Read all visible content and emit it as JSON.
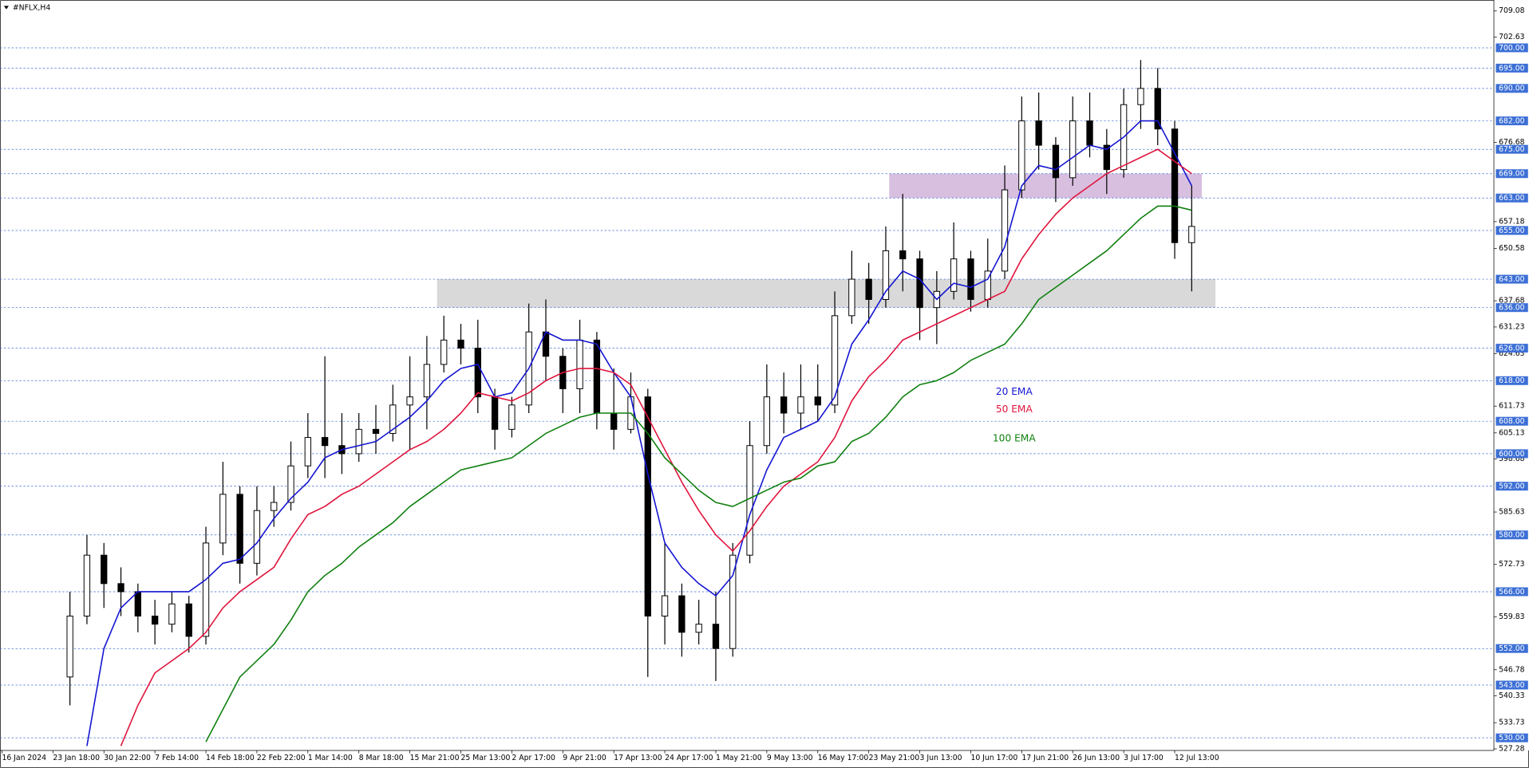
{
  "chart_data": {
    "type": "candlestick",
    "title": "#NFLX,H4",
    "categories": [
      "16 Jan 2024",
      null,
      null,
      "23 Jan 18:00",
      null,
      null,
      "30 Jan 22:00",
      null,
      null,
      "7 Feb 14:00",
      null,
      null,
      "14 Feb 18:00",
      null,
      null,
      "22 Feb 22:00",
      null,
      null,
      "1 Mar 14:00",
      null,
      null,
      "8 Mar 18:00",
      null,
      null,
      "15 Mar 21:00",
      null,
      null,
      "25 Mar 13:00",
      null,
      null,
      "2 Apr 17:00",
      null,
      null,
      "9 Apr 21:00",
      null,
      null,
      "17 Apr 13:00",
      null,
      null,
      "24 Apr 17:00",
      null,
      null,
      "1 May 21:00",
      null,
      null,
      "9 May 13:00",
      null,
      null,
      "16 May 17:00",
      null,
      null,
      "23 May 21:00",
      null,
      null,
      "3 Jun 13:00",
      null,
      null,
      "10 Jun 17:00",
      null,
      null,
      "17 Jun 21:00",
      null,
      null,
      "26 Jun 13:00",
      null,
      null,
      "3 Jul 17:00",
      null,
      null,
      "12 Jul 13:00",
      null,
      null
    ],
    "candles": [
      null,
      null,
      null,
      null,
      [
        545,
        566,
        538,
        560
      ],
      [
        560,
        580,
        558,
        575
      ],
      [
        575,
        578,
        562,
        568
      ],
      [
        568,
        572,
        560,
        566
      ],
      [
        566,
        568,
        556,
        560
      ],
      [
        560,
        564,
        553,
        558
      ],
      [
        558,
        566,
        556,
        563
      ],
      [
        563,
        565,
        551,
        555
      ],
      [
        555,
        582,
        553,
        578
      ],
      [
        578,
        598,
        575,
        590
      ],
      [
        590,
        592,
        568,
        573
      ],
      [
        573,
        592,
        570,
        586
      ],
      [
        586,
        592,
        582,
        588
      ],
      [
        588,
        603,
        586,
        597
      ],
      [
        597,
        610,
        594,
        604
      ],
      [
        604,
        624,
        594,
        602
      ],
      [
        602,
        610,
        595,
        600
      ],
      [
        600,
        610,
        598,
        606
      ],
      [
        606,
        612,
        600,
        605
      ],
      [
        605,
        617,
        603,
        612
      ],
      [
        612,
        624,
        601,
        614
      ],
      [
        614,
        629,
        606,
        622
      ],
      [
        622,
        634,
        620,
        628
      ],
      [
        628,
        632,
        622,
        626
      ],
      [
        626,
        633,
        610,
        614
      ],
      [
        614,
        616,
        601,
        606
      ],
      [
        606,
        614,
        604,
        612
      ],
      [
        612,
        637,
        610,
        630
      ],
      [
        630,
        638,
        618,
        624
      ],
      [
        624,
        626,
        610,
        616
      ],
      [
        616,
        633,
        610,
        628
      ],
      [
        628,
        630,
        606,
        610
      ],
      [
        610,
        621,
        601,
        606
      ],
      [
        606,
        620,
        605,
        614
      ],
      [
        614,
        616,
        545,
        560
      ],
      [
        560,
        578,
        553,
        565
      ],
      [
        565,
        568,
        550,
        556
      ],
      [
        556,
        564,
        553,
        558
      ],
      [
        558,
        566,
        544,
        552
      ],
      [
        552,
        578,
        550,
        575
      ],
      [
        575,
        608,
        573,
        602
      ],
      [
        602,
        622,
        600,
        614
      ],
      [
        614,
        620,
        605,
        610
      ],
      [
        610,
        622,
        606,
        614
      ],
      [
        614,
        622,
        608,
        612
      ],
      [
        612,
        640,
        610,
        634
      ],
      [
        634,
        650,
        632,
        643
      ],
      [
        643,
        647,
        632,
        638
      ],
      [
        638,
        656,
        636,
        650
      ],
      [
        650,
        664,
        640,
        648
      ],
      [
        648,
        650,
        628,
        636
      ],
      [
        636,
        645,
        627,
        640
      ],
      [
        640,
        657,
        638,
        648
      ],
      [
        648,
        650,
        635,
        638
      ],
      [
        638,
        653,
        636,
        645
      ],
      [
        645,
        671,
        643,
        665
      ],
      [
        665,
        688,
        663,
        682
      ],
      [
        682,
        689,
        670,
        676
      ],
      [
        676,
        678,
        662,
        668
      ],
      [
        668,
        688,
        666,
        682
      ],
      [
        682,
        689,
        673,
        676
      ],
      [
        676,
        680,
        664,
        670
      ],
      [
        670,
        690,
        668,
        686
      ],
      [
        686,
        697,
        680,
        690
      ],
      [
        690,
        695,
        676,
        680
      ],
      [
        680,
        682,
        648,
        652
      ],
      [
        652,
        666,
        640,
        656
      ],
      null
    ],
    "series": [
      {
        "name": "20 EMA",
        "color": "#1414d2",
        "values": [
          null,
          null,
          null,
          null,
          null,
          528,
          552,
          562,
          566,
          566,
          566,
          566,
          569,
          573,
          574,
          578,
          584,
          589,
          593,
          599,
          601,
          602,
          603,
          606,
          609,
          613,
          618,
          621,
          622,
          614,
          615,
          621,
          630,
          628,
          628,
          627,
          620,
          614,
          595,
          578,
          572,
          568,
          565,
          570,
          585,
          596,
          604,
          606,
          608,
          614,
          627,
          633,
          640,
          645,
          643,
          638,
          642,
          641,
          643,
          651,
          666,
          671,
          670,
          673,
          676,
          675,
          678,
          682,
          682,
          674,
          666,
          null
        ]
      },
      {
        "name": "50 EMA",
        "color": "#e0143c",
        "values": [
          null,
          null,
          null,
          null,
          null,
          null,
          null,
          528,
          538,
          546,
          549,
          552,
          556,
          562,
          566,
          569,
          572,
          579,
          585,
          587,
          590,
          592,
          595,
          598,
          601,
          603,
          606,
          610,
          615,
          614,
          613,
          615,
          618,
          620,
          621,
          621,
          620,
          617,
          609,
          601,
          593,
          586,
          580,
          576,
          581,
          587,
          592,
          595,
          598,
          604,
          613,
          619,
          623,
          628,
          630,
          632,
          634,
          636,
          638,
          640,
          648,
          654,
          659,
          663,
          666,
          669,
          671,
          673,
          675,
          672,
          669,
          null
        ]
      },
      {
        "name": "100 EMA",
        "color": "#108010",
        "values": [
          null,
          null,
          null,
          null,
          null,
          null,
          null,
          null,
          null,
          null,
          null,
          null,
          529,
          537,
          545,
          549,
          553,
          559,
          566,
          570,
          573,
          577,
          580,
          583,
          587,
          590,
          593,
          596,
          597,
          598,
          599,
          602,
          605,
          607,
          609,
          610,
          610,
          610,
          605,
          599,
          595,
          591,
          588,
          587,
          589,
          591,
          593,
          594,
          597,
          598,
          603,
          605,
          609,
          614,
          617,
          618,
          620,
          623,
          625,
          627,
          632,
          638,
          641,
          644,
          647,
          650,
          654,
          658,
          661,
          661,
          660,
          null
        ]
      }
    ],
    "candle_color": "#000000",
    "zones": [
      {
        "low": 663,
        "high": 669,
        "color": "#d8bfdf",
        "x_range": [
          52.2,
          70.6
        ]
      },
      {
        "low": 636,
        "high": 643,
        "color": "#d9d9d9",
        "x_range": [
          25.6,
          71.4
        ]
      }
    ],
    "levels": [
      {
        "value": 700,
        "label": "700.00"
      },
      {
        "value": 695,
        "label": "695.00"
      },
      {
        "value": 690,
        "label": "690.00"
      },
      {
        "value": 682,
        "label": "682.00"
      },
      {
        "value": 675,
        "label": "675.00"
      },
      {
        "value": 669,
        "label": "669.00"
      },
      {
        "value": 663,
        "label": "663.00"
      },
      {
        "value": 655,
        "label": "655.00"
      },
      {
        "value": 643,
        "label": "643.00"
      },
      {
        "value": 636,
        "label": "636.00"
      },
      {
        "value": 626,
        "label": "626.00"
      },
      {
        "value": 618,
        "label": "618.00"
      },
      {
        "value": 608,
        "label": "608.00"
      },
      {
        "value": 600,
        "label": "600.00"
      },
      {
        "value": 592,
        "label": "592.00"
      },
      {
        "value": 580,
        "label": "580.00"
      },
      {
        "value": 566,
        "label": "566.00"
      },
      {
        "value": 552,
        "label": "552.00"
      },
      {
        "value": 543,
        "label": "543.00"
      },
      {
        "value": 530,
        "label": "530.00"
      }
    ],
    "level_color": "#3c6fd6",
    "ylim": [
      526.9,
      711.77
    ],
    "yticks": [
      709.08,
      702.63,
      676.68,
      657.18,
      650.58,
      637.68,
      631.23,
      624.63,
      611.73,
      605.13,
      598.68,
      585.63,
      572.73,
      559.83,
      546.78,
      540.33,
      533.73,
      527.28
    ]
  }
}
